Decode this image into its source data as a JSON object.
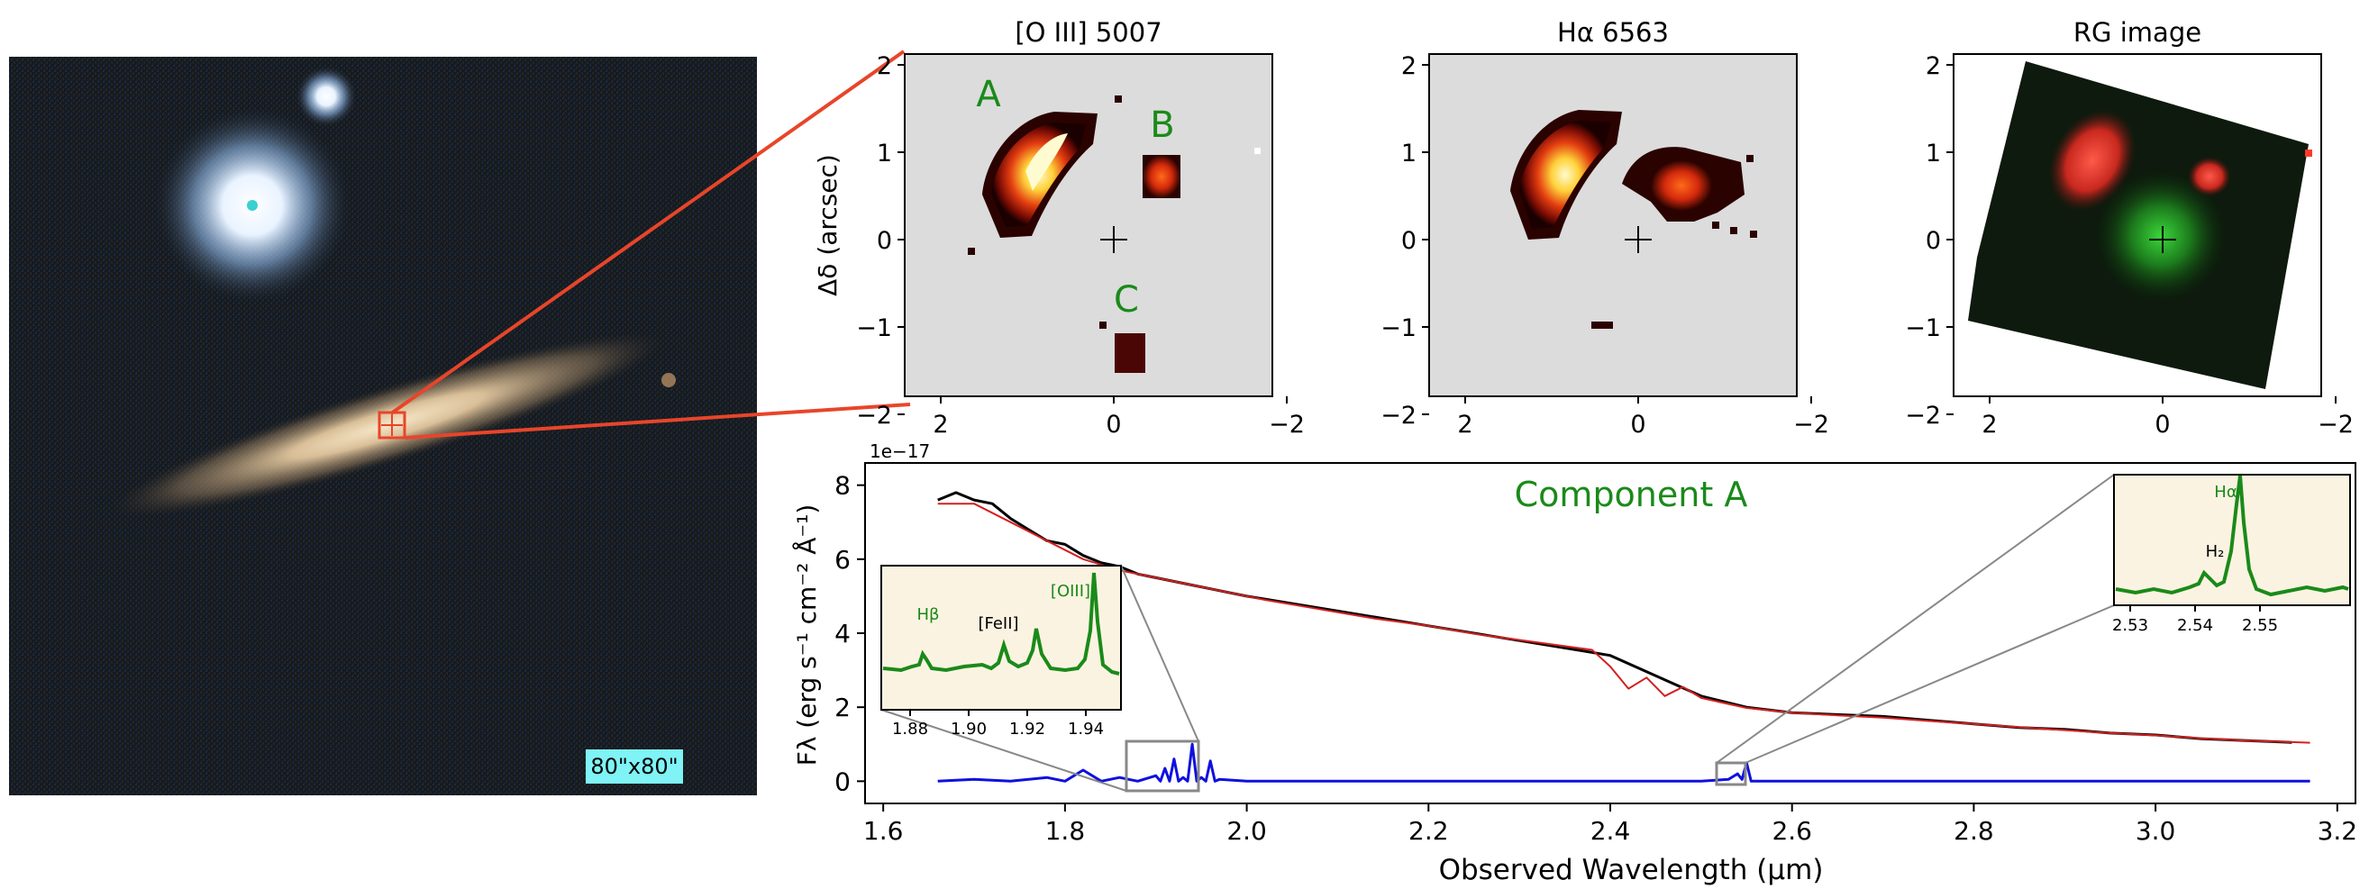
{
  "colors": {
    "panel_bg": "#dcdcdc",
    "label_green": "#1a8a1a",
    "zoom_line": "#e8452a",
    "observed_spectrum": "#000000",
    "model_fit": "#d42020",
    "emission_residual": "#1010e0",
    "inset_bg": "#fbf3e1",
    "inset_curve": "#1a8a1a",
    "scale_badge": "#7ff3f5"
  },
  "galaxy_image": {
    "scale_label": "80\"x80\""
  },
  "map_panels": [
    {
      "title": "[O III] 5007",
      "ylabel": "Δδ (arcsec)",
      "xticks": [
        "2",
        "0",
        "−2"
      ],
      "yticks": [
        "2",
        "1",
        "0",
        "−1",
        "−2"
      ],
      "component_labels": [
        "A",
        "B",
        "C"
      ]
    },
    {
      "title": "Hα 6563",
      "xticks": [
        "2",
        "0",
        "−2"
      ],
      "yticks": [
        "2",
        "1",
        "0",
        "−1",
        "−2"
      ]
    },
    {
      "title": "RG image",
      "xticks": [
        "2",
        "0",
        "−2"
      ],
      "yticks": [
        "2",
        "1",
        "0",
        "−1",
        "−2"
      ]
    }
  ],
  "chart_data": {
    "type": "line",
    "title": "Component A",
    "xlabel": "Observed Wavelength (μm)",
    "ylabel": "Fλ (erg s⁻¹ cm⁻² Å⁻¹)",
    "y_multiplier": "1e−17",
    "xlim": [
      1.58,
      3.22
    ],
    "ylim": [
      -0.6,
      8.6
    ],
    "xticks": [
      "1.6",
      "1.8",
      "2.0",
      "2.2",
      "2.4",
      "2.6",
      "2.8",
      "3.0",
      "3.2"
    ],
    "yticks": [
      "0",
      "2",
      "4",
      "6",
      "8"
    ],
    "grid": false,
    "series": [
      {
        "x": [
          1.66,
          1.68,
          1.7,
          1.72,
          1.74,
          1.76,
          1.78,
          1.8,
          1.82,
          1.84,
          1.86,
          1.88,
          1.9,
          1.92,
          1.94,
          1.96,
          1.98,
          2.0,
          2.05,
          2.1,
          2.15,
          2.2,
          2.25,
          2.3,
          2.35,
          2.4,
          2.5,
          2.55,
          2.6,
          2.65,
          2.7,
          2.75,
          2.8,
          2.85,
          2.9,
          2.95,
          3.0,
          3.05,
          3.1,
          3.15
        ],
        "y": [
          7.6,
          7.8,
          7.6,
          7.5,
          7.1,
          6.8,
          6.5,
          6.4,
          6.1,
          5.9,
          5.8,
          5.6,
          5.5,
          5.4,
          5.3,
          5.2,
          5.1,
          5.0,
          4.8,
          4.6,
          4.4,
          4.2,
          4.0,
          3.8,
          3.6,
          3.4,
          2.3,
          2.0,
          1.85,
          1.8,
          1.75,
          1.65,
          1.55,
          1.45,
          1.4,
          1.3,
          1.25,
          1.15,
          1.1,
          1.05
        ]
      },
      {
        "x": [
          1.66,
          1.7,
          1.74,
          1.78,
          1.82,
          1.86,
          1.9,
          1.94,
          1.98,
          2.02,
          2.08,
          2.14,
          2.2,
          2.26,
          2.32,
          2.38,
          2.4,
          2.42,
          2.44,
          2.46,
          2.48,
          2.5,
          2.55,
          2.6,
          2.65,
          2.7,
          2.75,
          2.8,
          2.85,
          2.9,
          2.95,
          3.0,
          3.05,
          3.1,
          3.17
        ],
        "y": [
          7.5,
          7.5,
          7.0,
          6.5,
          6.0,
          5.7,
          5.5,
          5.3,
          5.1,
          4.9,
          4.65,
          4.4,
          4.2,
          3.95,
          3.75,
          3.55,
          3.1,
          2.5,
          2.8,
          2.3,
          2.55,
          2.25,
          1.98,
          1.85,
          1.78,
          1.72,
          1.63,
          1.55,
          1.46,
          1.38,
          1.3,
          1.24,
          1.16,
          1.1,
          1.04
        ]
      },
      {
        "x": [
          1.66,
          1.7,
          1.74,
          1.78,
          1.8,
          1.82,
          1.84,
          1.86,
          1.88,
          1.9,
          1.905,
          1.91,
          1.915,
          1.92,
          1.925,
          1.93,
          1.935,
          1.94,
          1.945,
          1.95,
          1.955,
          1.96,
          1.965,
          1.97,
          2.0,
          2.1,
          2.2,
          2.3,
          2.4,
          2.5,
          2.53,
          2.54,
          2.545,
          2.55,
          2.555,
          2.6,
          2.8,
          3.0,
          3.17
        ],
        "y": [
          0.0,
          0.05,
          0.0,
          0.1,
          0.0,
          0.3,
          0.0,
          0.1,
          0.0,
          0.15,
          0.0,
          0.35,
          0.0,
          0.6,
          0.0,
          0.1,
          0.0,
          1.0,
          0.0,
          0.1,
          0.0,
          0.55,
          0.0,
          0.05,
          0.0,
          0.0,
          0.0,
          0.0,
          0.0,
          0.0,
          0.05,
          0.2,
          0.05,
          0.5,
          0.0,
          0.0,
          0.0,
          0.0,
          0.0
        ]
      }
    ],
    "insets": [
      {
        "xticks": [
          "1.88",
          "1.90",
          "1.92",
          "1.94"
        ],
        "line_labels": [
          {
            "text": "Hβ",
            "colorKey": "inset_curve"
          },
          {
            "text": "[FeII]",
            "colorKey": "observed_spectrum"
          },
          {
            "text": "[OIII]",
            "colorKey": "inset_curve"
          }
        ]
      },
      {
        "xticks": [
          "2.53",
          "2.54",
          "2.55"
        ],
        "line_labels": [
          {
            "text": "Hα",
            "colorKey": "inset_curve"
          },
          {
            "text": "H₂",
            "colorKey": "observed_spectrum"
          }
        ]
      }
    ]
  }
}
